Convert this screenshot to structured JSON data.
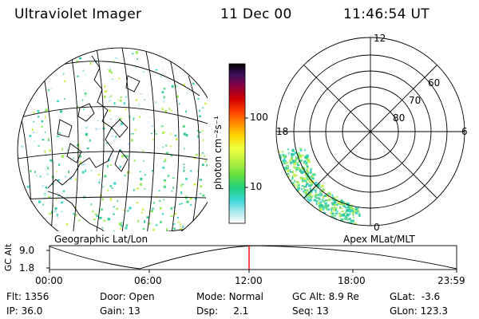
{
  "header": {
    "instrument": "Ultraviolet Imager",
    "date": "11 Dec 00",
    "time": "11:46:54 UT"
  },
  "maps": {
    "geo_label": "Geographic Lat/Lon",
    "apex_label": "Apex MLat/MLT",
    "polar_hour_labels": [
      "12",
      "18",
      "6",
      "0"
    ],
    "polar_lat_labels": [
      "60",
      "70",
      "80"
    ]
  },
  "colorbar": {
    "unit_label": "photon cm⁻²s⁻¹",
    "tick_labels": [
      "100",
      "10"
    ],
    "scale": "log"
  },
  "timeline": {
    "axis_label": "GC Alt",
    "y_ticks": [
      "9.0",
      "1.8"
    ],
    "x_ticks": [
      "00:00",
      "06:00",
      "12:00",
      "18:00",
      "23:59"
    ],
    "marker_color": "#ff0000"
  },
  "info": {
    "rows": [
      [
        {
          "label": "Flt:",
          "value": "1356"
        },
        {
          "label": "Door:",
          "value": "Open"
        },
        {
          "label": "Mode:",
          "value": "Normal"
        },
        {
          "label": "GC Alt:",
          "value": "8.9 Re"
        },
        {
          "label": "GLat:",
          "value": "-3.6"
        }
      ],
      [
        {
          "label": "IP:",
          "value": "36.0"
        },
        {
          "label": "Gain:",
          "value": "13"
        },
        {
          "label": "Dsp:",
          "value": "2.1"
        },
        {
          "label": "Seq:",
          "value": "13"
        },
        {
          "label": "GLon:",
          "value": "123.3"
        }
      ]
    ]
  }
}
